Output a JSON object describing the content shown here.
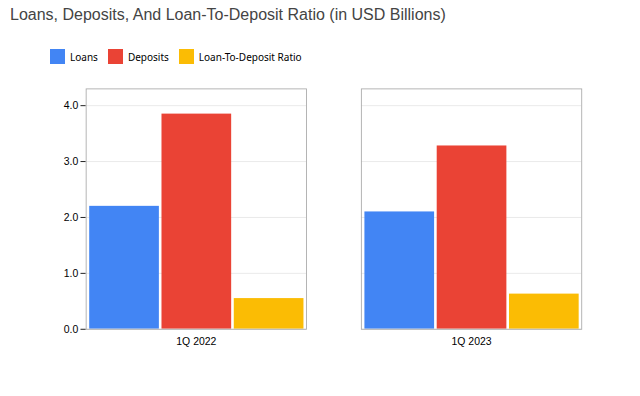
{
  "chart_data": {
    "type": "bar",
    "title": "Loans, Deposits, And Loan-To-Deposit Ratio (in USD Billions)",
    "categories": [
      "1Q 2022",
      "1Q 2023"
    ],
    "series": [
      {
        "name": "Loans",
        "color": "#4285F4",
        "values": [
          2.2,
          2.1
        ]
      },
      {
        "name": "Deposits",
        "color": "#EA4335",
        "values": [
          3.85,
          3.28
        ]
      },
      {
        "name": "Loan-To-Deposit Ratio",
        "color": "#FBBC04",
        "values": [
          0.55,
          0.63
        ]
      }
    ],
    "ylim": [
      0,
      4.3
    ],
    "yticks": [
      0,
      1,
      2,
      3,
      4
    ],
    "grid": true,
    "legend": "top"
  }
}
